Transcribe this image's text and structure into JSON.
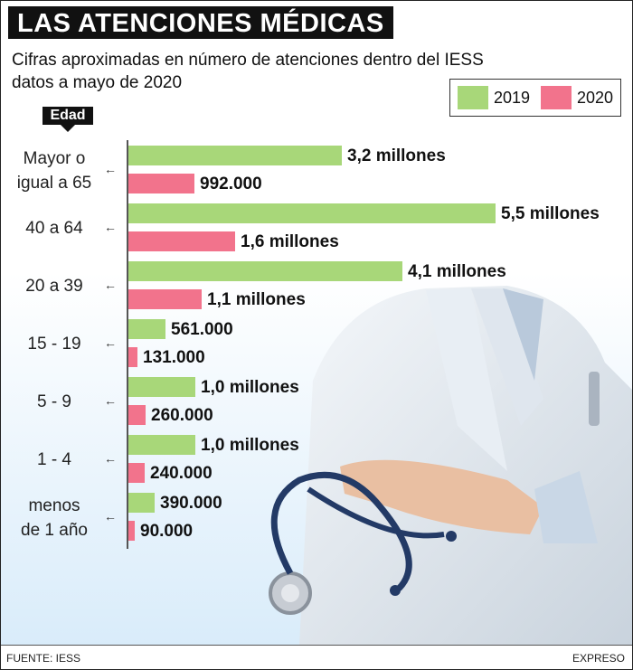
{
  "header": {
    "title": "LAS ATENCIONES MÉDICAS",
    "subtitle_line1": "Cifras aproximadas en número de atenciones dentro del IESS",
    "subtitle_line2": "datos a mayo de 2020"
  },
  "axis_tag": "Edad",
  "footer": {
    "source": "FUENTE: IESS",
    "credit": "EXPRESO"
  },
  "colors": {
    "y2019": "#a8d779",
    "y2020": "#f2738c"
  },
  "chart_data": {
    "type": "bar",
    "orientation": "horizontal",
    "title": "LAS ATENCIONES MÉDICAS",
    "subtitle": "Cifras aproximadas en número de atenciones dentro del IESS datos a mayo de 2020",
    "legend_position": "top-right",
    "categories": [
      "Mayor o igual a 65",
      "40 a 64",
      "20 a 39",
      "15 - 19",
      "5 - 9",
      "1 - 4",
      "menos de 1 año"
    ],
    "category_lines": [
      [
        "Mayor o",
        "igual a 65"
      ],
      [
        "40 a 64"
      ],
      [
        "20 a 39"
      ],
      [
        "15 - 19"
      ],
      [
        "5 - 9"
      ],
      [
        "1 - 4"
      ],
      [
        "menos",
        "de 1 año"
      ]
    ],
    "series": [
      {
        "name": "2019",
        "values": [
          3200000,
          5500000,
          4100000,
          561000,
          1000000,
          1000000,
          390000
        ],
        "labels": [
          "3,2 millones",
          "5,5 millones",
          "4,1 millones",
          "561.000",
          "1,0 millones",
          "1,0 millones",
          "390.000"
        ]
      },
      {
        "name": "2020",
        "values": [
          992000,
          1600000,
          1100000,
          131000,
          260000,
          240000,
          90000
        ],
        "labels": [
          "992.000",
          "1,6 millones",
          "1,1 millones",
          "131.000",
          "260.000",
          "240.000",
          "90.000"
        ]
      }
    ],
    "xlim": [
      0,
      5500000
    ],
    "grid": false
  }
}
